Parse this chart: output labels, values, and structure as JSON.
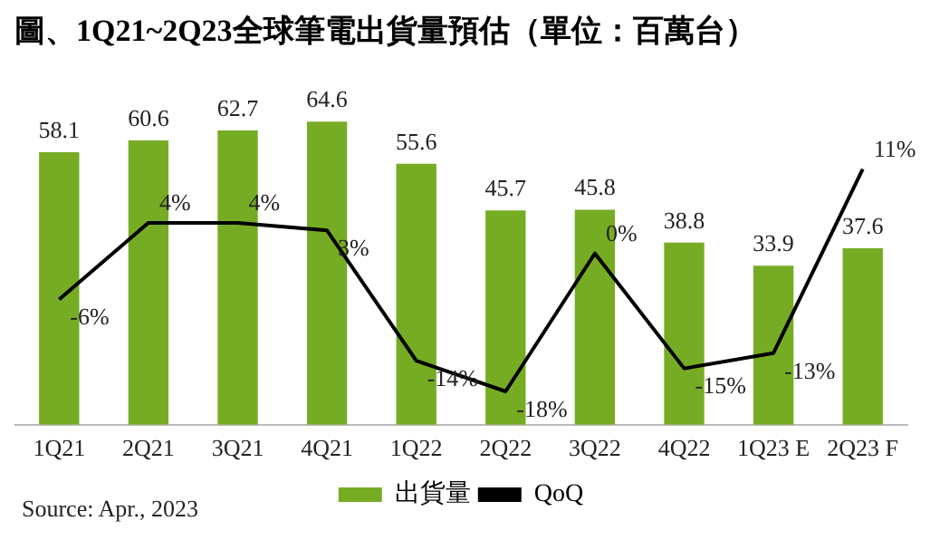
{
  "chart_data": {
    "type": "bar",
    "title": "圖、1Q21~2Q23全球筆電出貨量預估（單位：百萬台）",
    "categories": [
      "1Q21",
      "2Q21",
      "3Q21",
      "4Q21",
      "1Q22",
      "2Q22",
      "3Q22",
      "4Q22",
      "1Q23 E",
      "2Q23 F"
    ],
    "series": [
      {
        "name": "出貨量",
        "color": "#76ac24",
        "values": [
          58.1,
          60.6,
          62.7,
          64.6,
          55.6,
          45.7,
          45.8,
          38.8,
          33.9,
          37.6
        ]
      },
      {
        "name": "QoQ",
        "type": "line",
        "axis": "y2",
        "color": "#000000",
        "values": [
          -6,
          4,
          4,
          3,
          -14,
          -18,
          0,
          -15,
          -13,
          11
        ],
        "value_labels": [
          "-6%",
          "4%",
          "4%",
          "3%",
          "-14%",
          "-18%",
          "0%",
          "-15%",
          "-13%",
          "11%"
        ]
      }
    ],
    "data_labels": true,
    "legend": "bottom",
    "grid": false,
    "tick_labels": "x",
    "marker": "none",
    "annotations": [
      "Source: Apr., 2023"
    ]
  }
}
